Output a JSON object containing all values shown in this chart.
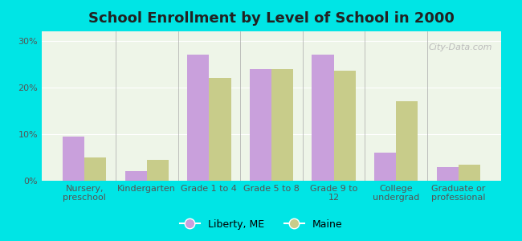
{
  "title": "School Enrollment by Level of School in 2000",
  "categories": [
    "Nursery,\npreschool",
    "Kindergarten",
    "Grade 1 to 4",
    "Grade 5 to 8",
    "Grade 9 to\n12",
    "College\nundergrad",
    "Graduate or\nprofessional"
  ],
  "liberty_values": [
    9.5,
    2.0,
    27.0,
    24.0,
    27.0,
    6.0,
    3.0
  ],
  "maine_values": [
    5.0,
    4.5,
    22.0,
    24.0,
    23.5,
    17.0,
    3.5
  ],
  "liberty_color": "#c9a0dc",
  "maine_color": "#c8cc8a",
  "background_color": "#00e5e5",
  "plot_bg_color": "#eef5e8",
  "yticks": [
    0,
    10,
    20,
    30
  ],
  "ylim": [
    0,
    32
  ],
  "legend_liberty": "Liberty, ME",
  "legend_maine": "Maine",
  "bar_width": 0.35,
  "title_fontsize": 13,
  "tick_fontsize": 8,
  "legend_fontsize": 9,
  "watermark_text": "City-Data.com"
}
